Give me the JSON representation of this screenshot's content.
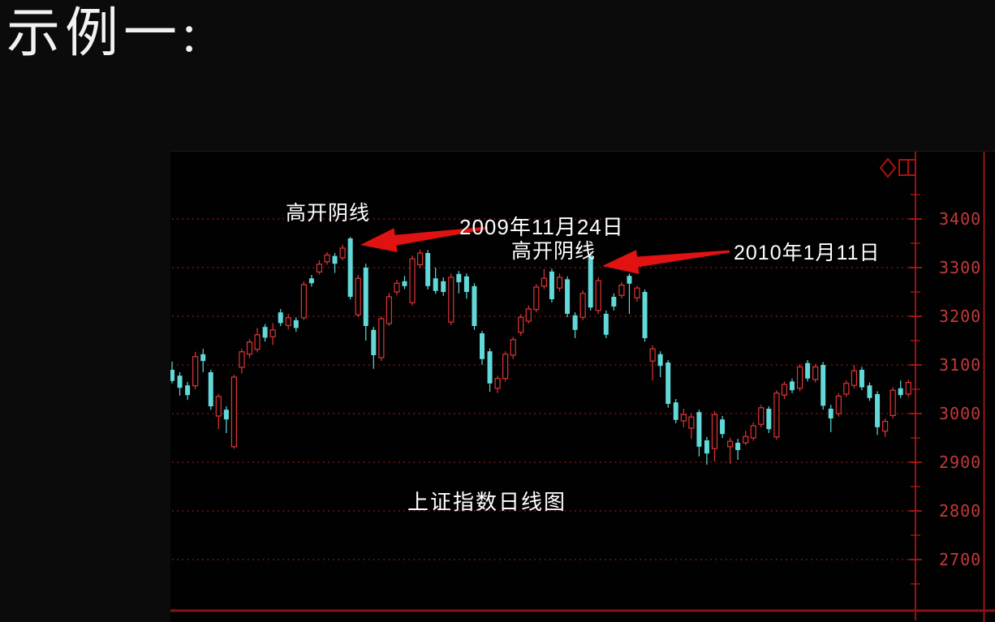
{
  "page": {
    "title": "示例一:"
  },
  "chart": {
    "note": "上证指数日线图",
    "annotation1_label": "高开阴线",
    "annotation1_date": "2009年11月24日",
    "annotation2_label": "高开阴线",
    "annotation2_date": "2010年1月11日",
    "icons": [
      "diamond-icon",
      "restore-window-icon"
    ],
    "colors": {
      "up": "#e23434",
      "down": "#62d8d8",
      "axis": "#c01818",
      "grid_dots": "#8c1a1a",
      "labels": "#c23a3a",
      "bottom_border": "#8a1212",
      "arrow": "#e01212",
      "annotation_text": "#ffffff"
    }
  },
  "chart_data": {
    "type": "candlestick",
    "title": "上证指数日线图",
    "ylim": [
      2650,
      3460
    ],
    "y_ticks": [
      2700,
      2800,
      2900,
      3000,
      3100,
      3200,
      3300,
      3400
    ],
    "y_minor_tick_step": 50,
    "grid": "dotted-horizontal",
    "legend": "none",
    "x_labels_visible": false,
    "columns": [
      "direction(r=up,c=down)",
      "open",
      "close",
      "high",
      "low"
    ],
    "candles": [
      [
        "c",
        3090,
        3067,
        3107,
        3062
      ],
      [
        "c",
        3078,
        3053,
        3085,
        3037
      ],
      [
        "c",
        3058,
        3038,
        3065,
        3028
      ],
      [
        "r",
        3057,
        3117,
        3127,
        3050
      ],
      [
        "c",
        3122,
        3108,
        3133,
        3085
      ],
      [
        "c",
        3085,
        3015,
        3090,
        3008
      ],
      [
        "r",
        2995,
        3035,
        3040,
        2968
      ],
      [
        "c",
        3008,
        2988,
        3015,
        2960
      ],
      [
        "r",
        2932,
        3075,
        3080,
        2928
      ],
      [
        "r",
        3095,
        3127,
        3133,
        3082
      ],
      [
        "r",
        3122,
        3147,
        3153,
        3114
      ],
      [
        "r",
        3132,
        3162,
        3176,
        3126
      ],
      [
        "c",
        3178,
        3156,
        3184,
        3148
      ],
      [
        "r",
        3158,
        3172,
        3186,
        3141
      ],
      [
        "c",
        3208,
        3186,
        3215,
        3180
      ],
      [
        "r",
        3181,
        3197,
        3205,
        3173
      ],
      [
        "c",
        3192,
        3176,
        3198,
        3168
      ],
      [
        "r",
        3197,
        3265,
        3272,
        3192
      ],
      [
        "c",
        3278,
        3268,
        3285,
        3261
      ],
      [
        "r",
        3291,
        3307,
        3315,
        3286
      ],
      [
        "r",
        3312,
        3326,
        3332,
        3306
      ],
      [
        "c",
        3324,
        3308,
        3330,
        3289
      ],
      [
        "r",
        3320,
        3340,
        3347,
        3315
      ],
      [
        "c",
        3360,
        3240,
        3363,
        3235
      ],
      [
        "r",
        3203,
        3278,
        3285,
        3198
      ],
      [
        "c",
        3300,
        3180,
        3308,
        3150
      ],
      [
        "c",
        3172,
        3120,
        3178,
        3092
      ],
      [
        "r",
        3115,
        3195,
        3200,
        3108
      ],
      [
        "r",
        3185,
        3240,
        3248,
        3180
      ],
      [
        "r",
        3250,
        3268,
        3275,
        3243
      ],
      [
        "c",
        3272,
        3262,
        3283,
        3256
      ],
      [
        "r",
        3228,
        3318,
        3325,
        3222
      ],
      [
        "r",
        3306,
        3330,
        3337,
        3299
      ],
      [
        "c",
        3330,
        3262,
        3336,
        3255
      ],
      [
        "c",
        3278,
        3252,
        3300,
        3246
      ],
      [
        "c",
        3272,
        3250,
        3280,
        3242
      ],
      [
        "r",
        3188,
        3280,
        3288,
        3182
      ],
      [
        "c",
        3287,
        3270,
        3293,
        3247
      ],
      [
        "c",
        3282,
        3250,
        3288,
        3236
      ],
      [
        "c",
        3262,
        3180,
        3268,
        3172
      ],
      [
        "c",
        3165,
        3112,
        3170,
        3100
      ],
      [
        "c",
        3128,
        3062,
        3134,
        3045
      ],
      [
        "r",
        3052,
        3072,
        3078,
        3042
      ],
      [
        "r",
        3072,
        3122,
        3128,
        3066
      ],
      [
        "r",
        3120,
        3152,
        3158,
        3112
      ],
      [
        "r",
        3167,
        3198,
        3204,
        3160
      ],
      [
        "r",
        3190,
        3215,
        3222,
        3185
      ],
      [
        "r",
        3214,
        3260,
        3266,
        3208
      ],
      [
        "r",
        3262,
        3278,
        3297,
        3256
      ],
      [
        "c",
        3292,
        3235,
        3298,
        3228
      ],
      [
        "r",
        3258,
        3280,
        3288,
        3251
      ],
      [
        "c",
        3276,
        3205,
        3282,
        3198
      ],
      [
        "c",
        3202,
        3172,
        3208,
        3155
      ],
      [
        "r",
        3198,
        3247,
        3253,
        3192
      ],
      [
        "c",
        3325,
        3218,
        3332,
        3212
      ],
      [
        "r",
        3212,
        3273,
        3280,
        3205
      ],
      [
        "c",
        3205,
        3162,
        3212,
        3155
      ],
      [
        "c",
        3240,
        3220,
        3247,
        3212
      ],
      [
        "r",
        3243,
        3264,
        3270,
        3237
      ],
      [
        "c",
        3283,
        3267,
        3288,
        3205
      ],
      [
        "r",
        3238,
        3258,
        3263,
        3230
      ],
      [
        "c",
        3250,
        3155,
        3255,
        3148
      ],
      [
        "r",
        3108,
        3133,
        3140,
        3068
      ],
      [
        "c",
        3122,
        3098,
        3128,
        3075
      ],
      [
        "c",
        3105,
        3020,
        3110,
        3012
      ],
      [
        "c",
        3023,
        2987,
        3030,
        2980
      ],
      [
        "r",
        2985,
        2998,
        3010,
        2972
      ],
      [
        "r",
        2970,
        2993,
        3000,
        2948
      ],
      [
        "c",
        3003,
        2932,
        3008,
        2912
      ],
      [
        "c",
        2945,
        2918,
        2952,
        2895
      ],
      [
        "r",
        2928,
        2998,
        3005,
        2902
      ],
      [
        "c",
        2988,
        2958,
        2995,
        2950
      ],
      [
        "r",
        2932,
        2943,
        2950,
        2897
      ],
      [
        "c",
        2940,
        2925,
        2948,
        2905
      ],
      [
        "r",
        2940,
        2953,
        2965,
        2935
      ],
      [
        "r",
        2950,
        2975,
        2982,
        2944
      ],
      [
        "r",
        2978,
        3012,
        3018,
        2972
      ],
      [
        "c",
        3010,
        2968,
        3015,
        2960
      ],
      [
        "r",
        2952,
        3042,
        3048,
        2946
      ],
      [
        "r",
        3038,
        3060,
        3066,
        3030
      ],
      [
        "c",
        3066,
        3048,
        3072,
        3042
      ],
      [
        "r",
        3052,
        3096,
        3102,
        3046
      ],
      [
        "c",
        3104,
        3072,
        3110,
        3066
      ],
      [
        "r",
        3070,
        3096,
        3102,
        3064
      ],
      [
        "c",
        3100,
        3016,
        3106,
        3008
      ],
      [
        "c",
        3010,
        2990,
        3018,
        2962
      ],
      [
        "r",
        3000,
        3036,
        3042,
        2994
      ],
      [
        "r",
        3040,
        3062,
        3068,
        3034
      ],
      [
        "r",
        3058,
        3088,
        3100,
        3052
      ],
      [
        "c",
        3090,
        3054,
        3096,
        3048
      ],
      [
        "c",
        3058,
        3032,
        3064,
        3026
      ],
      [
        "c",
        3040,
        2972,
        3046,
        2956
      ],
      [
        "r",
        2964,
        2984,
        2990,
        2952
      ],
      [
        "r",
        2996,
        3048,
        3054,
        2990
      ],
      [
        "c",
        3052,
        3038,
        3068,
        3032
      ],
      [
        "r",
        3040,
        3064,
        3070,
        3034
      ]
    ],
    "annotations": [
      {
        "label": "高开阴线",
        "date": "2009年11月24日",
        "candle_index": 23
      },
      {
        "label": "高开阴线",
        "date": "2010年1月11日",
        "candle_index": 54
      }
    ],
    "arrows": [
      {
        "tail": [
          391,
          94
        ],
        "tip": [
          234,
          115
        ]
      },
      {
        "tail": [
          689,
          123
        ],
        "tip": [
          532,
          141
        ]
      }
    ]
  }
}
